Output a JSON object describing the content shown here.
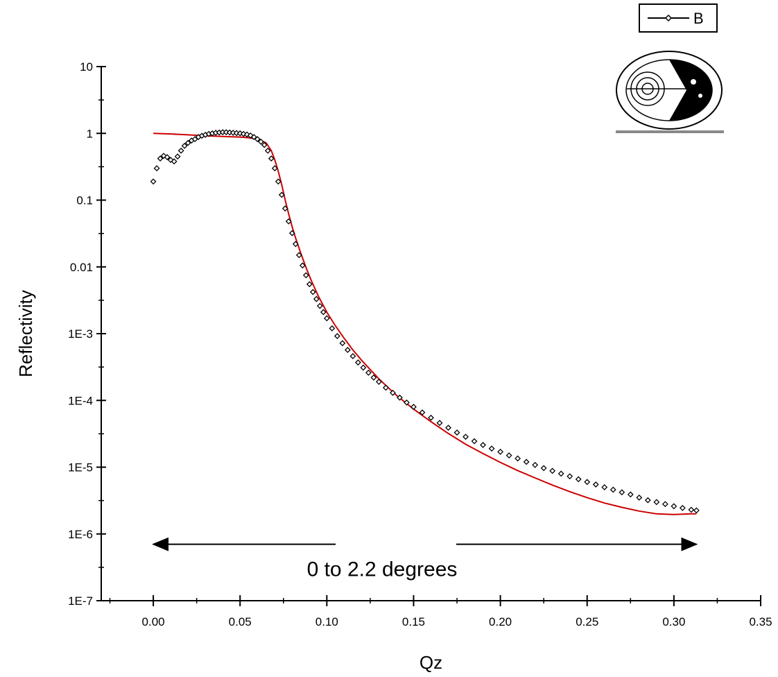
{
  "chart_data": {
    "type": "scatter",
    "xlabel": "Qz",
    "ylabel": "Reflectivity",
    "xlim": [
      -0.03,
      0.35
    ],
    "ylim": [
      1e-07,
      10
    ],
    "yscale": "log",
    "grid": false,
    "legend_placement": "top-right",
    "x_ticks": [
      0.0,
      0.05,
      0.1,
      0.15,
      0.2,
      0.25,
      0.3,
      0.35
    ],
    "x_tick_labels": [
      "0.00",
      "0.05",
      "0.10",
      "0.15",
      "0.20",
      "0.25",
      "0.30",
      "0.35"
    ],
    "y_ticks": [
      10,
      1,
      0.1,
      0.01,
      0.001,
      0.0001,
      1e-05,
      1e-06,
      1e-07
    ],
    "y_tick_labels": [
      "10",
      "1",
      "0.1",
      "0.01",
      "1E-3",
      "1E-4",
      "1E-5",
      "1E-6",
      "1E-7"
    ],
    "annotation": {
      "text": "0 to 2.2 degrees",
      "arrow_from_x": 0.0,
      "arrow_to_x": 0.313,
      "arrow_y": 7e-07
    },
    "series": [
      {
        "name": "B",
        "kind": "scatter",
        "marker": "diamond",
        "color": "#000000",
        "x": [
          0.0,
          0.002,
          0.004,
          0.006,
          0.008,
          0.01,
          0.012,
          0.014,
          0.016,
          0.018,
          0.02,
          0.022,
          0.024,
          0.026,
          0.028,
          0.03,
          0.032,
          0.034,
          0.036,
          0.038,
          0.04,
          0.042,
          0.044,
          0.046,
          0.048,
          0.05,
          0.052,
          0.054,
          0.056,
          0.058,
          0.06,
          0.062,
          0.064,
          0.066,
          0.068,
          0.07,
          0.072,
          0.074,
          0.076,
          0.078,
          0.08,
          0.082,
          0.084,
          0.086,
          0.088,
          0.09,
          0.092,
          0.094,
          0.096,
          0.098,
          0.1,
          0.103,
          0.106,
          0.109,
          0.112,
          0.115,
          0.118,
          0.121,
          0.124,
          0.127,
          0.13,
          0.134,
          0.138,
          0.142,
          0.146,
          0.15,
          0.155,
          0.16,
          0.165,
          0.17,
          0.175,
          0.18,
          0.185,
          0.19,
          0.195,
          0.2,
          0.205,
          0.21,
          0.215,
          0.22,
          0.225,
          0.23,
          0.235,
          0.24,
          0.245,
          0.25,
          0.255,
          0.26,
          0.265,
          0.27,
          0.275,
          0.28,
          0.285,
          0.29,
          0.295,
          0.3,
          0.305,
          0.31,
          0.313
        ],
        "y": [
          0.19,
          0.3,
          0.42,
          0.46,
          0.44,
          0.4,
          0.38,
          0.45,
          0.55,
          0.65,
          0.72,
          0.78,
          0.82,
          0.88,
          0.92,
          0.95,
          0.98,
          1.0,
          1.02,
          1.03,
          1.04,
          1.04,
          1.03,
          1.02,
          1.01,
          1.0,
          0.98,
          0.96,
          0.93,
          0.88,
          0.82,
          0.75,
          0.67,
          0.55,
          0.42,
          0.3,
          0.19,
          0.12,
          0.075,
          0.048,
          0.032,
          0.022,
          0.015,
          0.0105,
          0.0075,
          0.0055,
          0.0042,
          0.0033,
          0.0026,
          0.0021,
          0.0017,
          0.0012,
          0.00092,
          0.00072,
          0.00057,
          0.00046,
          0.00037,
          0.00031,
          0.00026,
          0.00022,
          0.00019,
          0.000155,
          0.00013,
          0.00011,
          9.3e-05,
          8e-05,
          6.6e-05,
          5.5e-05,
          4.6e-05,
          3.9e-05,
          3.3e-05,
          2.85e-05,
          2.45e-05,
          2.15e-05,
          1.9e-05,
          1.7e-05,
          1.5e-05,
          1.35e-05,
          1.2e-05,
          1.08e-05,
          9.7e-06,
          8.8e-06,
          8e-06,
          7.3e-06,
          6.6e-06,
          6e-06,
          5.5e-06,
          5e-06,
          4.6e-06,
          4.2e-06,
          3.9e-06,
          3.5e-06,
          3.2e-06,
          3e-06,
          2.8e-06,
          2.6e-06,
          2.45e-06,
          2.3e-06,
          2.25e-06
        ]
      },
      {
        "kind": "line",
        "color": "#cc0000",
        "x": [
          0.0,
          0.01,
          0.02,
          0.03,
          0.04,
          0.05,
          0.055,
          0.06,
          0.065,
          0.068,
          0.07,
          0.072,
          0.074,
          0.076,
          0.078,
          0.08,
          0.082,
          0.085,
          0.088,
          0.091,
          0.095,
          0.1,
          0.105,
          0.11,
          0.115,
          0.12,
          0.13,
          0.14,
          0.15,
          0.16,
          0.17,
          0.18,
          0.19,
          0.2,
          0.21,
          0.22,
          0.23,
          0.24,
          0.25,
          0.26,
          0.27,
          0.28,
          0.29,
          0.3,
          0.31,
          0.313
        ],
        "y": [
          1.0,
          0.98,
          0.95,
          0.92,
          0.9,
          0.88,
          0.86,
          0.82,
          0.72,
          0.55,
          0.4,
          0.27,
          0.17,
          0.1,
          0.062,
          0.04,
          0.027,
          0.016,
          0.0098,
          0.0063,
          0.0037,
          0.0021,
          0.0013,
          0.00085,
          0.00057,
          0.0004,
          0.00021,
          0.00012,
          7.4e-05,
          4.8e-05,
          3.2e-05,
          2.2e-05,
          1.6e-05,
          1.18e-05,
          8.9e-06,
          6.9e-06,
          5.4e-06,
          4.3e-06,
          3.5e-06,
          2.9e-06,
          2.5e-06,
          2.2e-06,
          2e-06,
          1.95e-06,
          2e-06,
          2e-06
        ]
      }
    ]
  }
}
